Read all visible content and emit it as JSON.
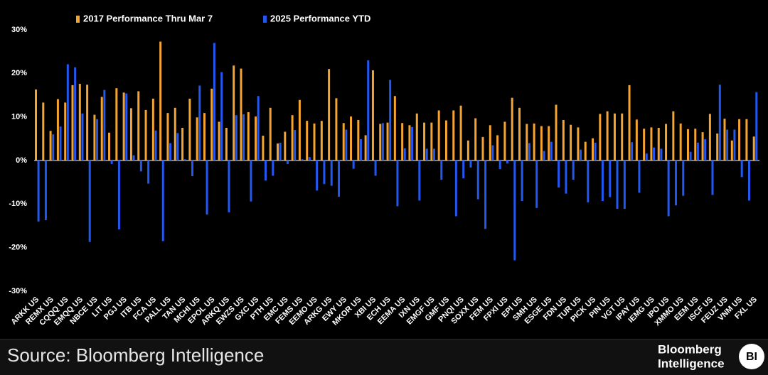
{
  "chart_data": {
    "type": "bar",
    "categories": [
      "ARKK US",
      null,
      "REMX US",
      null,
      "CQQQ US",
      null,
      "EMQQ US",
      null,
      "NBCE US",
      null,
      "LIT US",
      null,
      "PGJ US",
      null,
      "ITB US",
      null,
      "FCA US",
      null,
      "PALL US",
      null,
      "TAN US",
      null,
      "MCHI US",
      null,
      "EPOL US",
      null,
      "ARKQ US",
      null,
      "EWZS US",
      null,
      "GXC US",
      null,
      "PTH US",
      null,
      "EMC US",
      null,
      "FEMS US",
      null,
      "EEMO US",
      null,
      "ARKG US",
      null,
      "EWY US",
      null,
      "MKOR US",
      null,
      "XBI US",
      null,
      "ECH US",
      null,
      "EEMA US",
      null,
      "IXN US",
      null,
      "EMGF US",
      null,
      "GMF US",
      null,
      "PNQI US",
      null,
      "SOXX US",
      null,
      "FEM US",
      null,
      "FPXI US",
      null,
      "EPI US",
      null,
      "SMH US",
      null,
      "ESGE US",
      null,
      "FDN US",
      null,
      "TUR US",
      null,
      "PICK US",
      null,
      "PIN US",
      null,
      "VGT US",
      null,
      "IPAY US",
      null,
      "IEMG US",
      null,
      "IPO US",
      null,
      "XMMO US",
      null,
      "EEM US",
      null,
      "ISCF US",
      null,
      "FEUZ US",
      null,
      "VNM US",
      null,
      "FXL US"
    ],
    "series": [
      {
        "name": "2017 Performance Thru Mar 7",
        "color": "#f5a431",
        "values": [
          16.3,
          13.3,
          6.8,
          14.1,
          13.3,
          17.3,
          17.6,
          17.4,
          10.5,
          14.6,
          6.4,
          16.6,
          15.6,
          12.0,
          15.9,
          11.6,
          14.2,
          27.3,
          10.9,
          12.1,
          7.5,
          14.2,
          9.9,
          10.9,
          16.5,
          8.9,
          7.5,
          21.8,
          21.1,
          11.1,
          10.1,
          5.7,
          12.1,
          3.9,
          6.6,
          10.4,
          13.9,
          9.1,
          8.5,
          9.1,
          21.0,
          14.3,
          8.6,
          10.1,
          9.3,
          5.8,
          20.7,
          8.4,
          8.7,
          14.8,
          8.6,
          8.1,
          10.8,
          8.7,
          8.7,
          11.5,
          9.2,
          11.5,
          12.6,
          4.6,
          9.7,
          5.4,
          8.1,
          5.8,
          8.9,
          14.4,
          12.1,
          8.4,
          8.5,
          7.9,
          7.9,
          12.8,
          9.3,
          8.2,
          7.6,
          4.3,
          5.1,
          10.7,
          11.3,
          10.8,
          10.8,
          17.3,
          9.4,
          7.3,
          7.6,
          7.5,
          8.4,
          11.3,
          8.5,
          7.2,
          7.3,
          6.5,
          10.7,
          6.2,
          9.6,
          4.6,
          9.5,
          9.5,
          5.5
        ]
      },
      {
        "name": "2025 Performance YTD",
        "color": "#2257f0",
        "values": [
          -14.0,
          -13.7,
          6.0,
          7.8,
          22.1,
          21.4,
          10.8,
          -18.7,
          9.5,
          16.2,
          -0.8,
          -15.8,
          15.4,
          1.2,
          -2.5,
          -5.3,
          6.9,
          -18.5,
          4.0,
          6.3,
          0.3,
          -3.6,
          17.2,
          -12.4,
          27.0,
          20.3,
          -11.9,
          10.4,
          10.6,
          -9.4,
          14.8,
          -4.6,
          -3.5,
          4.1,
          -0.8,
          7.0,
          0.3,
          0.8,
          -6.9,
          -5.4,
          -5.8,
          -8.3,
          7.1,
          -1.9,
          4.9,
          23.0,
          -3.5,
          8.6,
          18.5,
          -10.5,
          2.8,
          7.7,
          -9.2,
          2.7,
          2.7,
          -4.4,
          0.1,
          -12.8,
          -4.1,
          -1.6,
          -8.9,
          -15.7,
          3.5,
          -2.0,
          -0.7,
          -22.9,
          -9.3,
          4.0,
          -10.9,
          2.2,
          4.3,
          -6.2,
          -7.6,
          -4.4,
          2.5,
          -9.6,
          4.1,
          -9.3,
          -8.4,
          -11.1,
          -11.1,
          4.2,
          -7.4,
          1.6,
          3.0,
          2.7,
          -12.8,
          -10.3,
          -8.1,
          2.0,
          4.1,
          4.9,
          -7.9,
          17.4,
          7.1,
          7.1,
          -3.8,
          -9.2,
          15.7
        ]
      }
    ],
    "ylim": [
      -30,
      30
    ],
    "yticks": [
      {
        "value": 30,
        "label": "30%"
      },
      {
        "value": 20,
        "label": "20%"
      },
      {
        "value": 10,
        "label": "10%"
      },
      {
        "value": 0,
        "label": "0%"
      },
      {
        "value": -10,
        "label": "-10%"
      },
      {
        "value": -20,
        "label": "-20%"
      },
      {
        "value": -30,
        "label": "-30%"
      }
    ],
    "legend": "top-left",
    "source": "Source: Bloomberg Intelligence",
    "logo": [
      "Bloomberg",
      "Intelligence"
    ],
    "badge": "BI"
  }
}
